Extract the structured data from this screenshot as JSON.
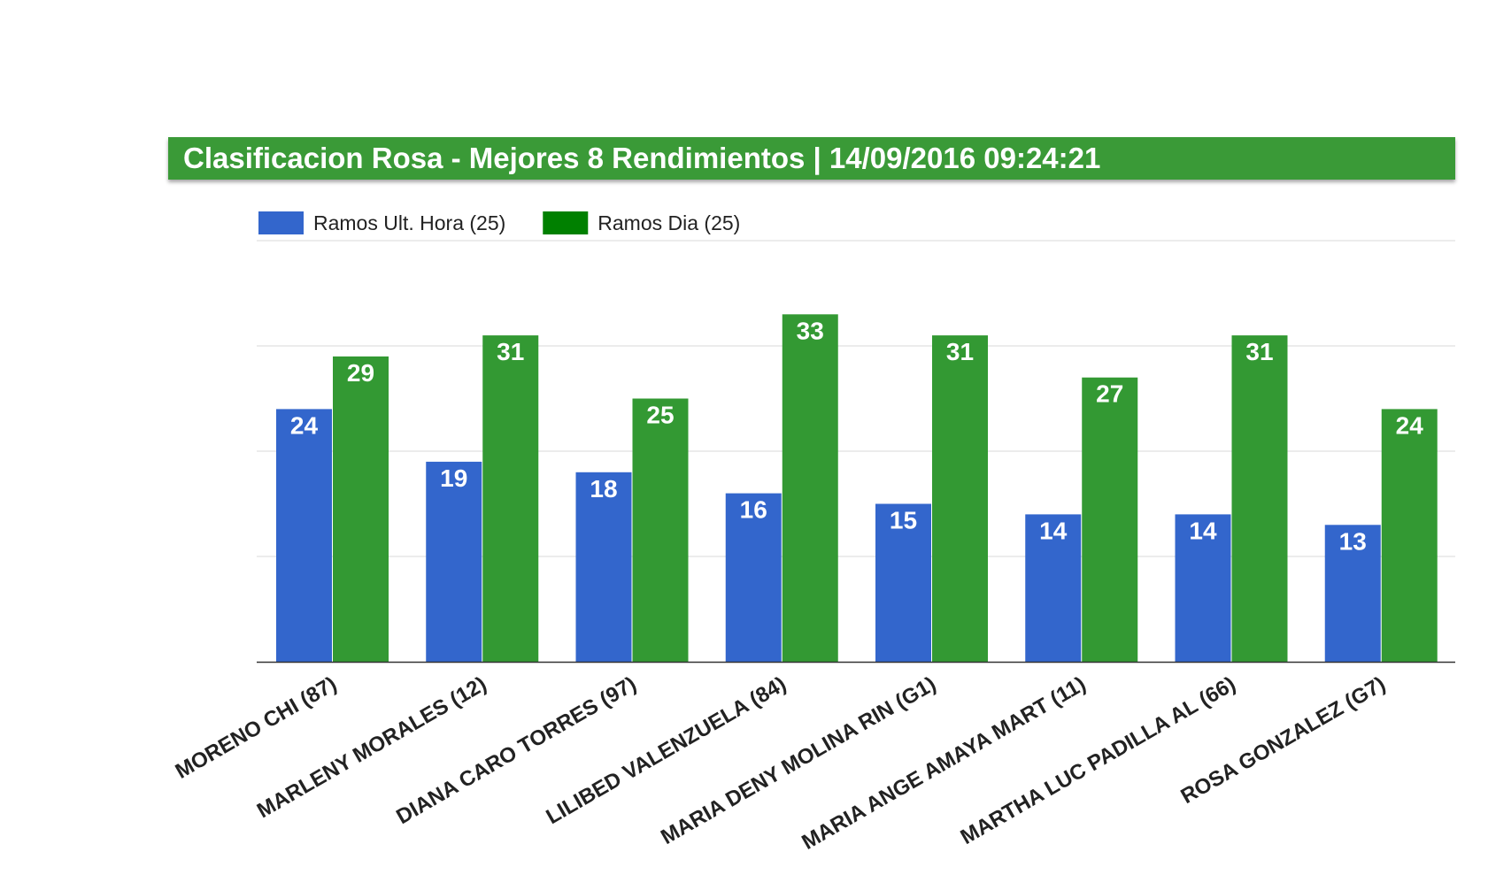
{
  "chart_data": {
    "type": "bar",
    "title": "Clasificacion Rosa - Mejores 8 Rendimientos | 14/09/2016 09:24:21",
    "categories": [
      "MORENO CHI (87)",
      "MARLENY MORALES (12)",
      "DIANA CARO TORRES (97)",
      "LILIBED VALENZUELA (84)",
      "MARIA DENY MOLINA RIN (G1)",
      "MARIA ANGE AMAYA MART (11)",
      "MARTHA LUC PADILLA AL (66)",
      "ROSA GONZALEZ (G7)"
    ],
    "series": [
      {
        "name": "Ramos Ult. Hora (25)",
        "color": "#3366cc",
        "values": [
          24,
          19,
          18,
          16,
          15,
          14,
          14,
          13
        ]
      },
      {
        "name": "Ramos Dia (25)",
        "color": "#339933",
        "values": [
          29,
          31,
          25,
          33,
          31,
          27,
          31,
          24
        ]
      }
    ],
    "legend_position": "top-left",
    "ylim": [
      0,
      40
    ],
    "gridlines": [
      10,
      20,
      30,
      40
    ],
    "grid": true,
    "data_labels": true,
    "header_color": "#3a9a37",
    "legend_swatch_colors": [
      "#3366cc",
      "#008000"
    ]
  }
}
